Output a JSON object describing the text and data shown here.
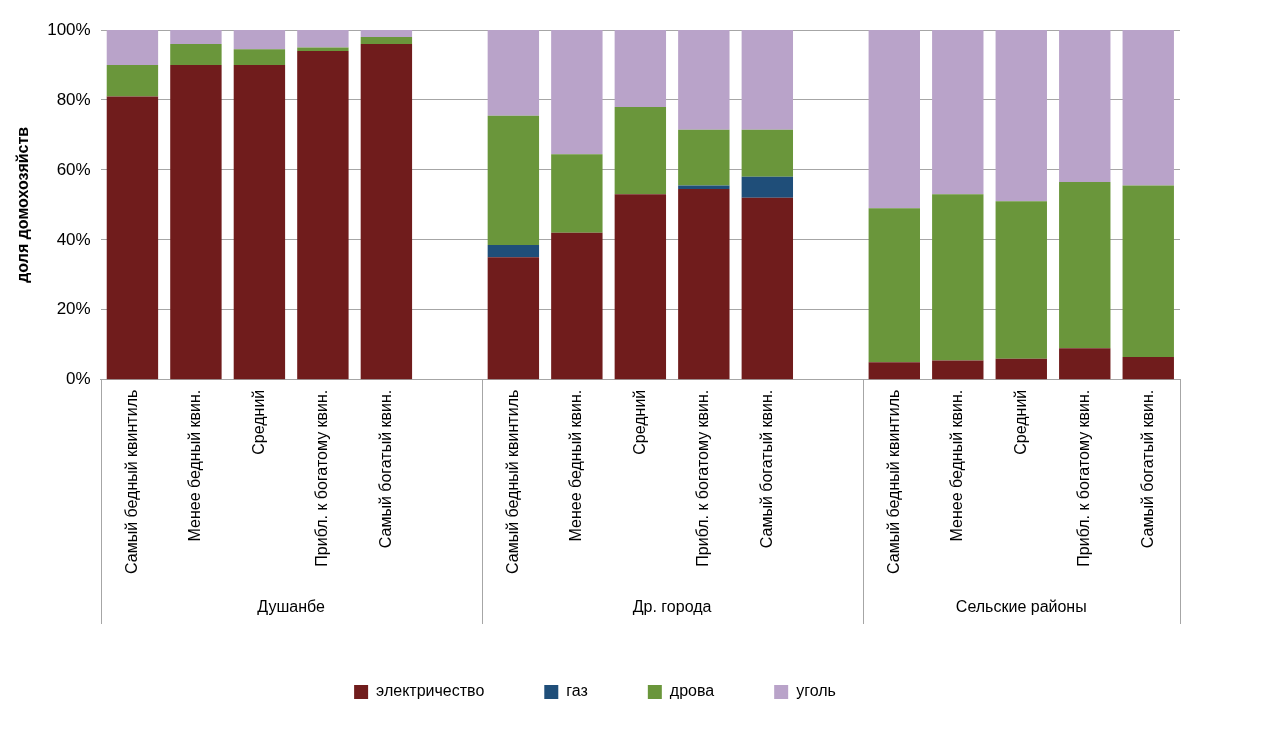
{
  "chart_data": {
    "type": "bar",
    "stacked": true,
    "ylabel": "доля домохозяйств",
    "categories": [
      "Самый бедный квинтиль",
      "Менее бедный квин.",
      "Средний",
      "Прибл. к богатому квин.",
      "Самый богатый квин.",
      null,
      "Самый бедный квинтиль",
      "Менее бедный квин.",
      "Средний",
      "Прибл. к богатому квин.",
      "Самый богатый квин.",
      null,
      "Самый бедный квинтиль",
      "Менее бедный квин.",
      "Средний",
      "Прибл. к богатому квин.",
      "Самый богатый квин."
    ],
    "series": [
      {
        "name": "электричество",
        "color": "#701c1c",
        "values": [
          81,
          90,
          90,
          94,
          96,
          null,
          35,
          42,
          53,
          54.5,
          52,
          null,
          5,
          5.5,
          6,
          9,
          6.5
        ]
      },
      {
        "name": "газ",
        "color": "#1f4e79",
        "values": [
          null,
          null,
          null,
          null,
          null,
          null,
          3.5,
          null,
          null,
          1,
          6,
          null,
          null,
          null,
          null,
          null,
          null
        ]
      },
      {
        "name": "дрова",
        "color": "#6a963b",
        "values": [
          9,
          6,
          4.5,
          1,
          2,
          null,
          37,
          22.5,
          25,
          16,
          13.5,
          null,
          44,
          47.5,
          45,
          47.5,
          49
        ]
      },
      {
        "name": "уголь",
        "color": "#b9a3c9",
        "values": [
          10,
          4,
          5.5,
          5,
          2,
          null,
          24.5,
          35.5,
          22,
          28.5,
          28.5,
          null,
          51,
          47,
          49,
          43.5,
          44.5
        ]
      }
    ],
    "ylim": [
      0,
      100
    ],
    "yticks": [
      {
        "value": 0,
        "label": "0%"
      },
      {
        "value": 20,
        "label": "20%"
      },
      {
        "value": 40,
        "label": "40%"
      },
      {
        "value": 60,
        "label": "60%"
      },
      {
        "value": 80,
        "label": "80%"
      },
      {
        "value": 100,
        "label": "100%"
      }
    ],
    "grid": "y",
    "legend": "bottom",
    "annotations": [
      "Душанбе",
      "Др. города",
      "Сельские районы"
    ]
  }
}
